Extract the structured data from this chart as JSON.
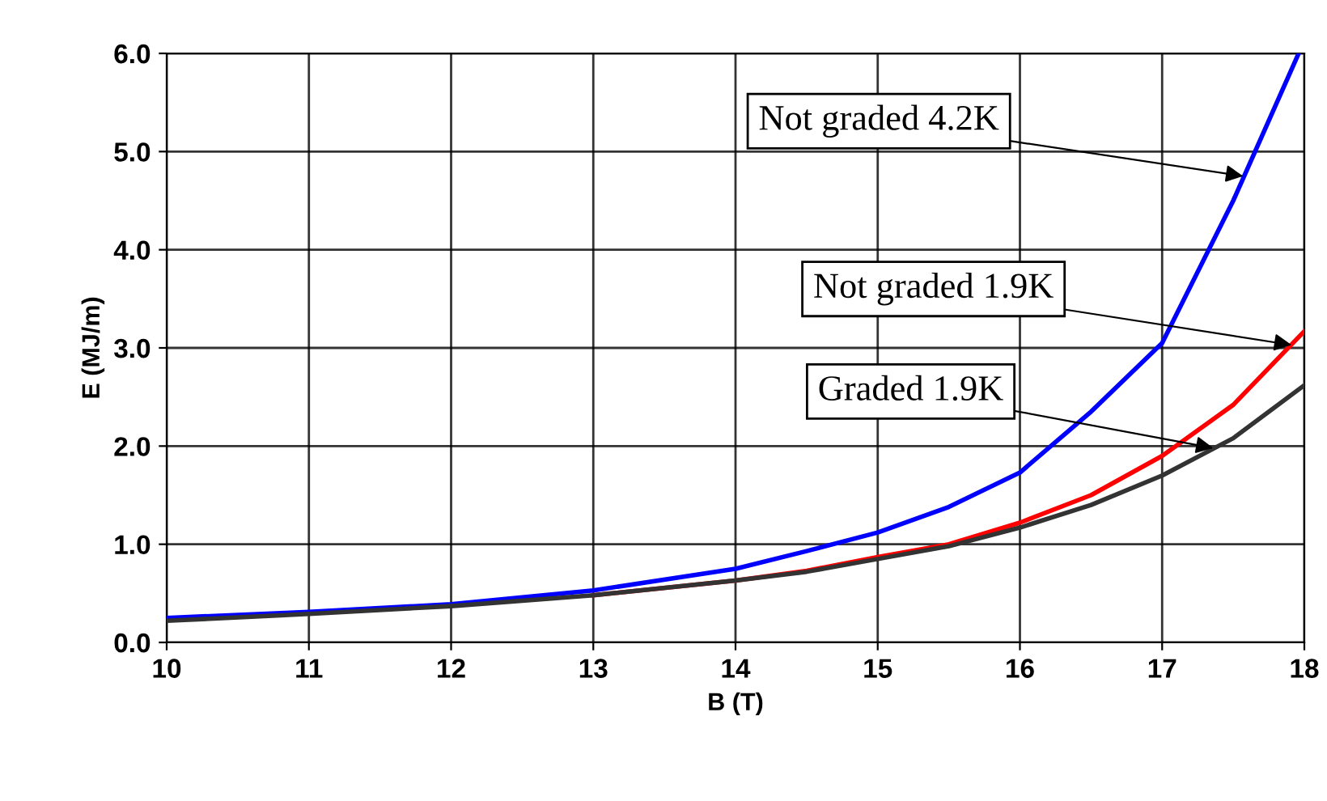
{
  "chart_data": {
    "type": "line",
    "xlabel": "B (T)",
    "ylabel": "E (MJ/m)",
    "xlim": [
      10,
      18
    ],
    "xticks": [
      10,
      11,
      12,
      13,
      14,
      15,
      16,
      17,
      18
    ],
    "ylim": [
      0,
      6
    ],
    "yticks": [
      {
        "value": 0,
        "label": "0.0"
      },
      {
        "value": 1,
        "label": "1.0"
      },
      {
        "value": 2,
        "label": "2.0"
      },
      {
        "value": 3,
        "label": "3.0"
      },
      {
        "value": 4,
        "label": "4.0"
      },
      {
        "value": 5,
        "label": "5.0"
      },
      {
        "value": 6,
        "label": "6.0"
      }
    ],
    "grid": true,
    "marker": "none",
    "line_style": "solid",
    "series": [
      {
        "color": "#0000ff",
        "x": [
          10,
          11,
          12,
          13,
          14,
          14.5,
          15,
          15.5,
          16,
          16.5,
          17,
          17.5,
          17.96
        ],
        "values": [
          0.25,
          0.31,
          0.39,
          0.53,
          0.75,
          0.93,
          1.12,
          1.38,
          1.73,
          2.35,
          3.05,
          4.5,
          6.0
        ]
      },
      {
        "color": "#ff0000",
        "x": [
          13,
          14,
          14.5,
          15,
          15.5,
          16,
          16.5,
          17,
          17.5,
          18
        ],
        "values": [
          0.48,
          0.63,
          0.73,
          0.87,
          1.0,
          1.22,
          1.5,
          1.9,
          2.42,
          3.17
        ]
      },
      {
        "color": "#333333",
        "x": [
          10,
          11,
          12,
          13,
          14,
          14.5,
          15,
          15.5,
          16,
          16.5,
          17,
          17.5,
          18
        ],
        "values": [
          0.22,
          0.29,
          0.37,
          0.48,
          0.63,
          0.72,
          0.85,
          0.98,
          1.17,
          1.4,
          1.7,
          2.08,
          2.62
        ]
      }
    ],
    "annotations": [
      {
        "text": "Not graded 4.2K",
        "x": 17.57,
        "y": 4.75
      },
      {
        "text": "Not graded 1.9K",
        "x": 17.91,
        "y": 3.03
      },
      {
        "text": "Graded 1.9K",
        "x": 17.36,
        "y": 1.98
      }
    ]
  }
}
